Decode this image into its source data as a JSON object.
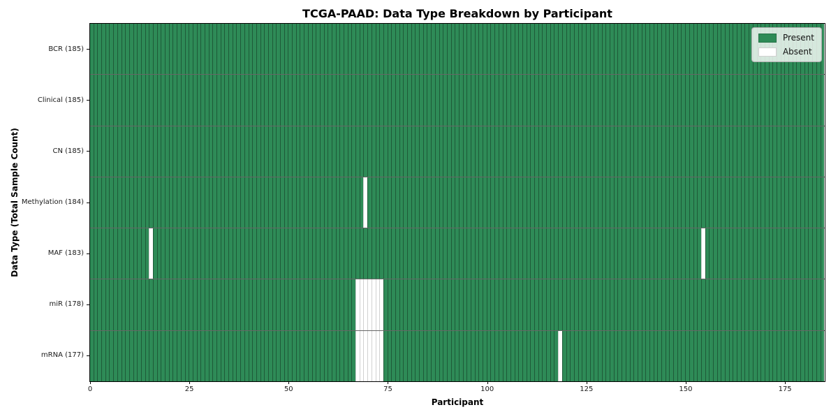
{
  "chart_data": {
    "type": "heatmap",
    "title": "TCGA-PAAD: Data Type Breakdown by Participant",
    "xlabel": "Participant",
    "ylabel": "Data Type (Total Sample Count)",
    "n_participants": 185,
    "xlim": [
      0,
      185
    ],
    "x_ticks": [
      0,
      25,
      50,
      75,
      100,
      125,
      150,
      175
    ],
    "grid": false,
    "legend_position": "upper right",
    "colors": {
      "present": "#2e8b57",
      "absent": "#ffffff",
      "cell_edge": "rgba(0,0,0,0.35)",
      "row_separator": "rgba(0,0,0,0.6)"
    },
    "legend": [
      {
        "label": "Present",
        "color": "#2e8b57"
      },
      {
        "label": "Absent",
        "color": "#ffffff"
      }
    ],
    "rows": [
      {
        "name": "BCR",
        "label": "BCR (185)",
        "total_samples": 185,
        "absent_participants": []
      },
      {
        "name": "Clinical",
        "label": "Clinical (185)",
        "total_samples": 185,
        "absent_participants": []
      },
      {
        "name": "CN",
        "label": "CN (185)",
        "total_samples": 185,
        "absent_participants": []
      },
      {
        "name": "Methylation",
        "label": "Methylation (184)",
        "total_samples": 184,
        "absent_participants": [
          69
        ]
      },
      {
        "name": "MAF",
        "label": "MAF (183)",
        "total_samples": 183,
        "absent_participants": [
          15,
          154
        ]
      },
      {
        "name": "miR",
        "label": "miR (178)",
        "total_samples": 178,
        "absent_participants": [
          67,
          68,
          69,
          70,
          71,
          72,
          73
        ]
      },
      {
        "name": "mRNA",
        "label": "mRNA (177)",
        "total_samples": 177,
        "absent_participants": [
          67,
          68,
          69,
          70,
          71,
          72,
          73,
          118
        ]
      }
    ]
  }
}
